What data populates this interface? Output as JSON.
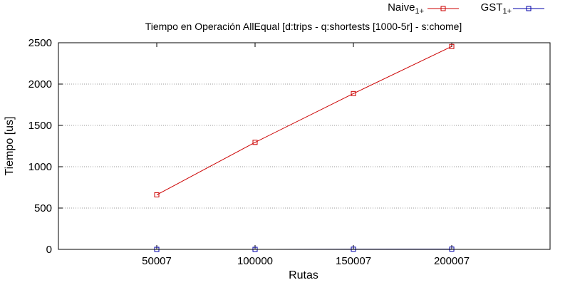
{
  "chart_data": {
    "type": "line",
    "title": "Tiempo en Operación AllEqual [d:trips - q:shortests [1000-5r] - s:chome]",
    "xlabel": "Rutas",
    "ylabel": "Tiempo [us]",
    "x_ticks": [
      "50007",
      "100000",
      "150007",
      "200007"
    ],
    "x": [
      50007,
      100000,
      150007,
      200007
    ],
    "xlim": [
      0,
      250000
    ],
    "ylim": [
      0,
      2500
    ],
    "y_ticks": [
      "0",
      "500",
      "1000",
      "1500",
      "2000",
      "2500"
    ],
    "y_tick_values": [
      0,
      500,
      1000,
      1500,
      2000,
      2500
    ],
    "grid": "horizontal dotted",
    "legend_position": "top-right",
    "series": [
      {
        "name": "Naive",
        "name_sub": "1+",
        "color": "#cc0000",
        "values": [
          660,
          1295,
          1885,
          2455
        ]
      },
      {
        "name": "GST",
        "name_sub": "1+",
        "color": "#0000aa",
        "values": [
          0,
          0,
          2,
          3
        ]
      }
    ]
  }
}
